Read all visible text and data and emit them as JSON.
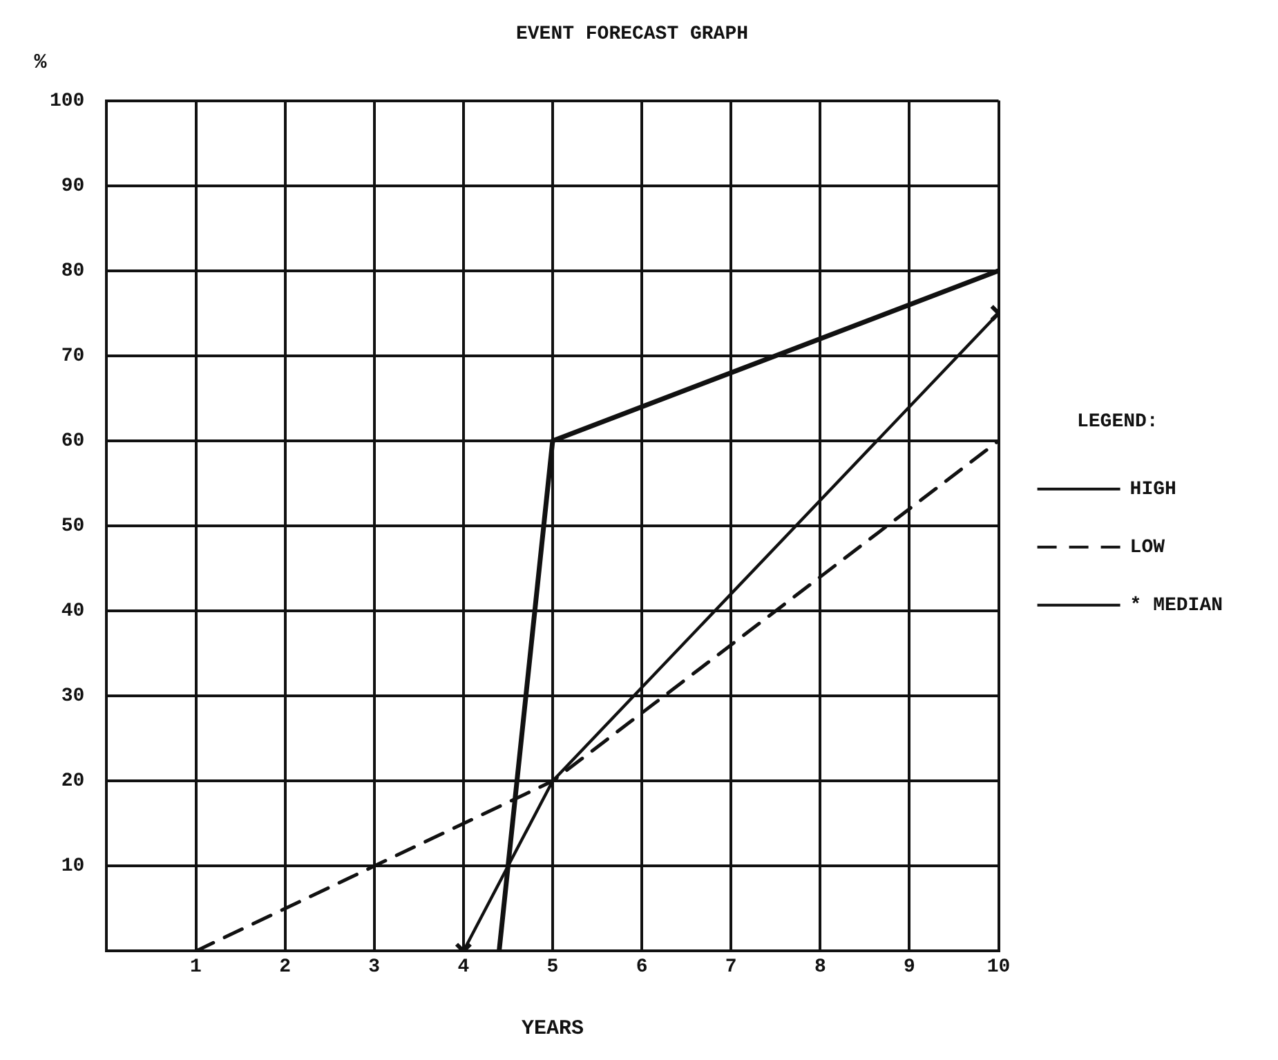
{
  "chart_data": {
    "type": "line",
    "title": "EVENT FORECAST GRAPH",
    "xlabel": "YEARS",
    "ylabel": "%",
    "legend_title": "LEGEND:",
    "xlim": [
      0,
      10
    ],
    "xticks": [
      1,
      2,
      3,
      4,
      5,
      6,
      7,
      8,
      9,
      10
    ],
    "ylim": [
      0,
      100
    ],
    "yticks": [
      10,
      20,
      30,
      40,
      50,
      60,
      70,
      80,
      90,
      100
    ],
    "grid": true,
    "legend": "right",
    "series": [
      {
        "name": "HIGH",
        "color": "#111111",
        "x": [
          4.4,
          5,
          10
        ],
        "values": [
          0,
          60,
          80
        ],
        "line_style": "solid",
        "marker": "none"
      },
      {
        "name": "LOW",
        "color": "#111111",
        "x": [
          1,
          3,
          5,
          10
        ],
        "values": [
          0,
          10,
          20,
          60
        ],
        "line_style": "dashed",
        "marker": "none"
      },
      {
        "name": "* MEDIAN",
        "color": "#111111",
        "x": [
          4,
          5,
          10
        ],
        "values": [
          0,
          20,
          75
        ],
        "line_style": "solid",
        "marker": "cross"
      }
    ]
  }
}
